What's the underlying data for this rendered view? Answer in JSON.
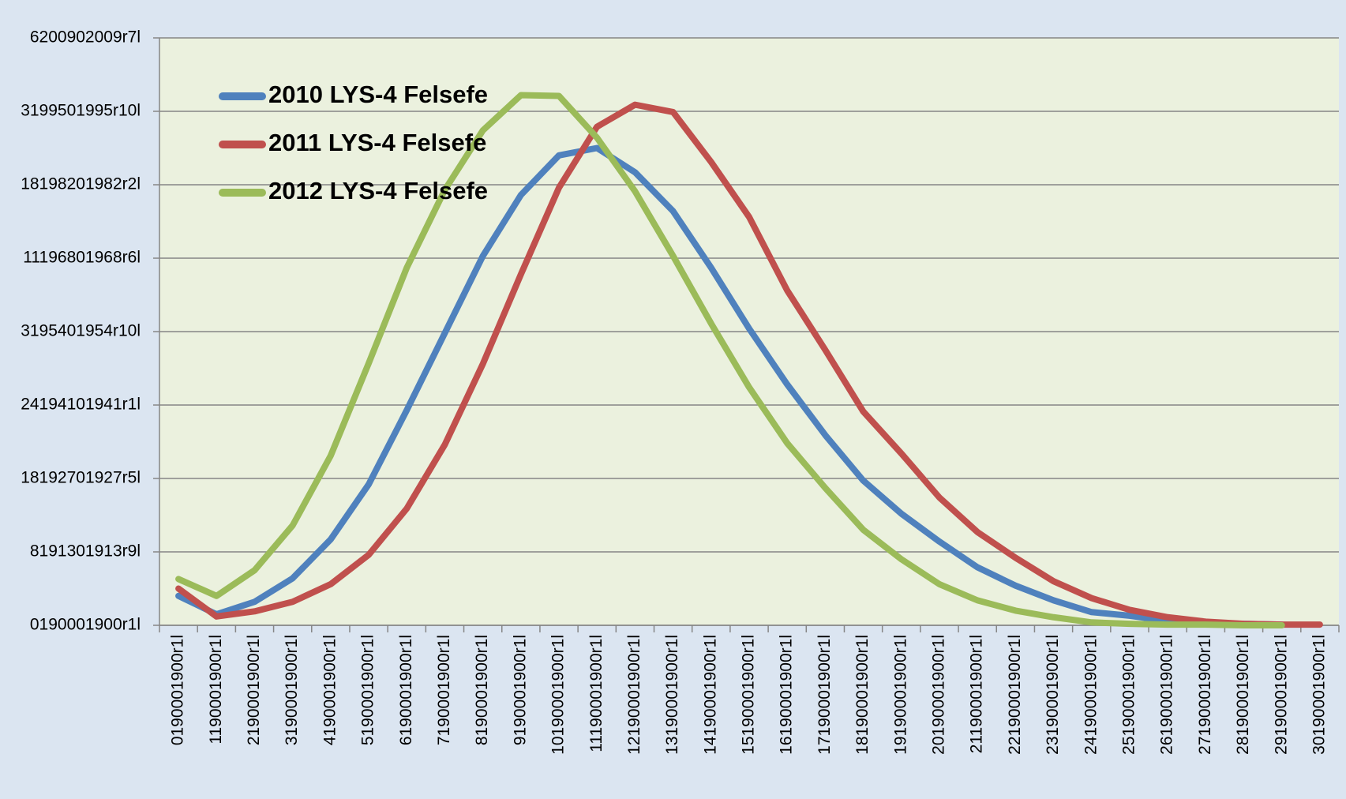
{
  "chart_data": {
    "type": "line",
    "categories": [
      "0190001900r1l",
      "1190001900r1l",
      "2190001900r1l",
      "3190001900r1l",
      "4190001900r1l",
      "5190001900r1l",
      "6190001900r1l",
      "7190001900r1l",
      "8190001900r1l",
      "9190001900r1l",
      "10190001900r1l",
      "11190001900r1l",
      "12190001900r1l",
      "13190001900r1l",
      "14190001900r1l",
      "15190001900r1l",
      "16190001900r1l",
      "17190001900r1l",
      "18190001900r1l",
      "19190001900r1l",
      "20190001900r1l",
      "21190001900r1l",
      "22190001900r1l",
      "23190001900r1l",
      "24190001900r1l",
      "25190001900r1l",
      "26190001900r1l",
      "27190001900r1l",
      "28190001900r1l",
      "29190001900r1l",
      "30190001900r1l"
    ],
    "series": [
      {
        "name": "2010 LYS-4 Felsefe",
        "color": "#4f81bd",
        "values": [
          0.4,
          0.15,
          0.32,
          0.64,
          1.17,
          1.92,
          2.93,
          3.98,
          5.03,
          5.86,
          6.4,
          6.5,
          6.17,
          5.64,
          4.87,
          4.04,
          3.28,
          2.59,
          1.97,
          1.52,
          1.14,
          0.79,
          0.54,
          0.34,
          0.18,
          0.13,
          0.06,
          0.03,
          0.02,
          0.01,
          null
        ]
      },
      {
        "name": "2011 LYS-4 Felsefe",
        "color": "#c0504d",
        "values": [
          0.5,
          0.12,
          0.19,
          0.32,
          0.56,
          0.96,
          1.59,
          2.46,
          3.56,
          4.78,
          5.96,
          6.79,
          7.09,
          6.99,
          6.31,
          5.56,
          4.56,
          3.75,
          2.91,
          2.34,
          1.74,
          1.27,
          0.92,
          0.6,
          0.37,
          0.21,
          0.11,
          0.05,
          0.02,
          0.01,
          0.01
        ]
      },
      {
        "name": "2012 LYS-4 Felsefe",
        "color": "#9bbb59",
        "values": [
          0.63,
          0.4,
          0.75,
          1.36,
          2.31,
          3.57,
          4.87,
          5.93,
          6.74,
          7.22,
          7.21,
          6.64,
          5.91,
          5.03,
          4.11,
          3.24,
          2.48,
          1.87,
          1.3,
          0.9,
          0.56,
          0.34,
          0.2,
          0.11,
          0.04,
          0.02,
          0.01,
          0.01,
          0,
          0,
          null
        ]
      }
    ],
    "ylim": [
      0,
      8
    ],
    "yticks": [
      {
        "value": 0,
        "label": "0190001900r1l"
      },
      {
        "value": 1,
        "label": "8191301913r9l"
      },
      {
        "value": 2,
        "label": "18192701927r5l"
      },
      {
        "value": 3,
        "label": "24194101941r1l"
      },
      {
        "value": 4,
        "label": "3195401954r10l"
      },
      {
        "value": 5,
        "label": "11196801968r6l"
      },
      {
        "value": 6,
        "label": "18198201982r2l"
      },
      {
        "value": 7,
        "label": "3199501995r10l"
      },
      {
        "value": 8,
        "label": "6200902009r7l"
      }
    ],
    "grid": true,
    "legend": "top-left"
  }
}
